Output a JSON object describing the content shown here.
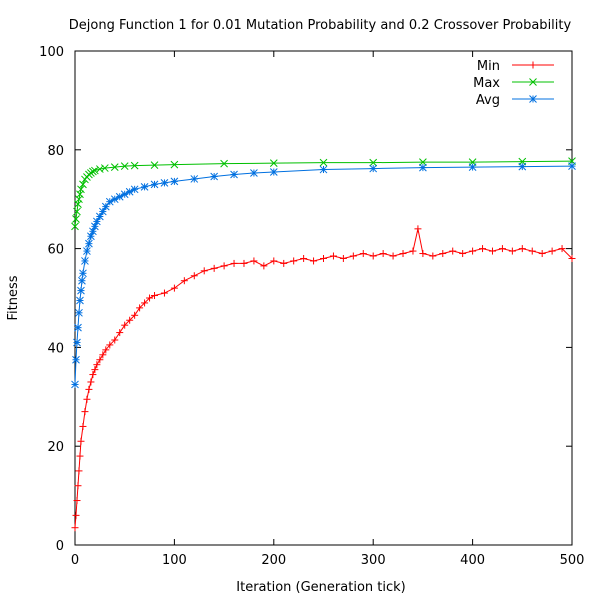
{
  "chart_data": {
    "type": "line",
    "title": "Dejong Function 1 for 0.01 Mutation Probability and 0.2 Crossover Probability",
    "xlabel": "Iteration (Generation tick)",
    "ylabel": "Fitness",
    "xlim": [
      0,
      500
    ],
    "ylim": [
      0,
      100
    ],
    "xticks": [
      "0",
      "100",
      "200",
      "300",
      "400",
      "500"
    ],
    "yticks": [
      "0",
      "20",
      "40",
      "60",
      "80",
      "100"
    ],
    "grid": false,
    "legend_position": "top-right",
    "series": [
      {
        "name": "Min",
        "color": "#ff0000",
        "marker": "plus",
        "points": [
          [
            0,
            3.5
          ],
          [
            1,
            6
          ],
          [
            2,
            9
          ],
          [
            3,
            12
          ],
          [
            4,
            15
          ],
          [
            5,
            18
          ],
          [
            6,
            21
          ],
          [
            8,
            24
          ],
          [
            10,
            27
          ],
          [
            12,
            29.5
          ],
          [
            14,
            31.5
          ],
          [
            16,
            33
          ],
          [
            18,
            34.5
          ],
          [
            20,
            35.5
          ],
          [
            22,
            36.5
          ],
          [
            25,
            37.5
          ],
          [
            28,
            38.5
          ],
          [
            31,
            39.5
          ],
          [
            35,
            40.5
          ],
          [
            40,
            41.5
          ],
          [
            45,
            43
          ],
          [
            50,
            44.5
          ],
          [
            55,
            45.5
          ],
          [
            60,
            46.5
          ],
          [
            65,
            48
          ],
          [
            70,
            49
          ],
          [
            75,
            50
          ],
          [
            80,
            50.5
          ],
          [
            90,
            51
          ],
          [
            100,
            52
          ],
          [
            110,
            53.5
          ],
          [
            120,
            54.5
          ],
          [
            130,
            55.5
          ],
          [
            140,
            56
          ],
          [
            150,
            56.5
          ],
          [
            160,
            57
          ],
          [
            170,
            57
          ],
          [
            180,
            57.5
          ],
          [
            190,
            56.5
          ],
          [
            200,
            57.5
          ],
          [
            210,
            57
          ],
          [
            220,
            57.5
          ],
          [
            230,
            58
          ],
          [
            240,
            57.5
          ],
          [
            250,
            58
          ],
          [
            260,
            58.5
          ],
          [
            270,
            58
          ],
          [
            280,
            58.5
          ],
          [
            290,
            59
          ],
          [
            300,
            58.5
          ],
          [
            310,
            59
          ],
          [
            320,
            58.5
          ],
          [
            330,
            59
          ],
          [
            340,
            59.5
          ],
          [
            345,
            64
          ],
          [
            350,
            59
          ],
          [
            360,
            58.5
          ],
          [
            370,
            59
          ],
          [
            380,
            59.5
          ],
          [
            390,
            59
          ],
          [
            400,
            59.5
          ],
          [
            410,
            60
          ],
          [
            420,
            59.5
          ],
          [
            430,
            60
          ],
          [
            440,
            59.5
          ],
          [
            450,
            60
          ],
          [
            460,
            59.5
          ],
          [
            470,
            59
          ],
          [
            480,
            59.5
          ],
          [
            490,
            60
          ],
          [
            500,
            58
          ]
        ]
      },
      {
        "name": "Max",
        "color": "#00c000",
        "marker": "cross",
        "points": [
          [
            0,
            64.5
          ],
          [
            1,
            66
          ],
          [
            2,
            67.5
          ],
          [
            3,
            69
          ],
          [
            4,
            70
          ],
          [
            5,
            71
          ],
          [
            6,
            72
          ],
          [
            8,
            73
          ],
          [
            10,
            74
          ],
          [
            12,
            74.5
          ],
          [
            14,
            75
          ],
          [
            16,
            75.3
          ],
          [
            18,
            75.6
          ],
          [
            20,
            75.8
          ],
          [
            25,
            76.1
          ],
          [
            30,
            76.3
          ],
          [
            40,
            76.5
          ],
          [
            50,
            76.7
          ],
          [
            60,
            76.8
          ],
          [
            80,
            76.9
          ],
          [
            100,
            77
          ],
          [
            150,
            77.2
          ],
          [
            200,
            77.3
          ],
          [
            250,
            77.4
          ],
          [
            300,
            77.4
          ],
          [
            350,
            77.5
          ],
          [
            400,
            77.5
          ],
          [
            450,
            77.6
          ],
          [
            500,
            77.7
          ]
        ]
      },
      {
        "name": "Avg",
        "color": "#0070e0",
        "marker": "star",
        "points": [
          [
            0,
            32.5
          ],
          [
            1,
            37.5
          ],
          [
            2,
            41
          ],
          [
            3,
            44
          ],
          [
            4,
            47
          ],
          [
            5,
            49.5
          ],
          [
            6,
            51.5
          ],
          [
            7,
            53.5
          ],
          [
            8,
            55
          ],
          [
            10,
            57.5
          ],
          [
            12,
            59.5
          ],
          [
            14,
            61
          ],
          [
            16,
            62.5
          ],
          [
            18,
            63.5
          ],
          [
            20,
            64.5
          ],
          [
            22,
            65.5
          ],
          [
            25,
            66.5
          ],
          [
            28,
            67.5
          ],
          [
            31,
            68.5
          ],
          [
            35,
            69.5
          ],
          [
            40,
            70
          ],
          [
            45,
            70.5
          ],
          [
            50,
            71
          ],
          [
            55,
            71.5
          ],
          [
            60,
            72
          ],
          [
            70,
            72.5
          ],
          [
            80,
            73
          ],
          [
            90,
            73.3
          ],
          [
            100,
            73.6
          ],
          [
            120,
            74.1
          ],
          [
            140,
            74.6
          ],
          [
            160,
            75
          ],
          [
            180,
            75.3
          ],
          [
            200,
            75.5
          ],
          [
            250,
            76
          ],
          [
            300,
            76.2
          ],
          [
            350,
            76.4
          ],
          [
            400,
            76.5
          ],
          [
            450,
            76.6
          ],
          [
            500,
            76.7
          ]
        ]
      }
    ]
  }
}
